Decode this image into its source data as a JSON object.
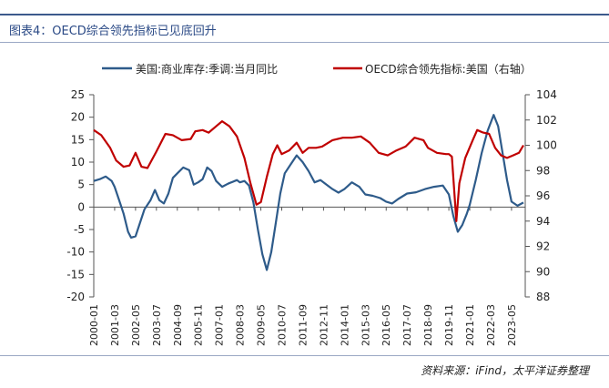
{
  "header": {
    "title": "图表4：OECD综合领先指标已见底回升"
  },
  "footer": {
    "source": "资料来源：iFind，太平洋证券整理"
  },
  "chart_data": {
    "type": "line",
    "title": "图表4：OECD综合领先指标已见底回升",
    "legend_position": "top",
    "x_categories": [
      "2000-01",
      "2001-03",
      "2002-05",
      "2003-07",
      "2004-09",
      "2005-11",
      "2007-01",
      "2008-03",
      "2009-05",
      "2010-07",
      "2011-09",
      "2012-11",
      "2014-01",
      "2015-03",
      "2016-05",
      "2017-07",
      "2018-09",
      "2019-11",
      "2021-01",
      "2022-03",
      "2023-05"
    ],
    "y_left": {
      "ticks": [
        25,
        20,
        15,
        10,
        5,
        0,
        -5,
        -10,
        -15,
        -20
      ],
      "range": [
        -20,
        25
      ]
    },
    "y_right": {
      "ticks": [
        104,
        102,
        100,
        98,
        96,
        94,
        92,
        90,
        88
      ],
      "range": [
        88,
        104
      ]
    },
    "series": [
      {
        "name": "美国:商业库存:季调:当月同比",
        "axis": "left",
        "color": "#2e5b8a",
        "points": [
          [
            "2000-01",
            5.8
          ],
          [
            "2000-05",
            6.2
          ],
          [
            "2000-09",
            6.8
          ],
          [
            "2001-01",
            5.8
          ],
          [
            "2001-03",
            4.5
          ],
          [
            "2001-06",
            1.5
          ],
          [
            "2001-09",
            -1.5
          ],
          [
            "2001-12",
            -5.5
          ],
          [
            "2002-02",
            -6.8
          ],
          [
            "2002-05",
            -6.5
          ],
          [
            "2002-08",
            -3.5
          ],
          [
            "2002-11",
            -0.5
          ],
          [
            "2003-03",
            1.5
          ],
          [
            "2003-06",
            3.8
          ],
          [
            "2003-09",
            1.5
          ],
          [
            "2003-12",
            0.8
          ],
          [
            "2004-03",
            3
          ],
          [
            "2004-06",
            6.5
          ],
          [
            "2004-09",
            7.5
          ],
          [
            "2005-01",
            8.8
          ],
          [
            "2005-05",
            8.2
          ],
          [
            "2005-08",
            5
          ],
          [
            "2005-11",
            5.5
          ],
          [
            "2006-02",
            6.2
          ],
          [
            "2006-05",
            8.8
          ],
          [
            "2006-08",
            8
          ],
          [
            "2006-11",
            5.8
          ],
          [
            "2007-03",
            4.5
          ],
          [
            "2007-07",
            5.2
          ],
          [
            "2008-01",
            6
          ],
          [
            "2008-03",
            5.5
          ],
          [
            "2008-06",
            5.8
          ],
          [
            "2008-09",
            4.8
          ],
          [
            "2008-12",
            1
          ],
          [
            "2009-03",
            -5
          ],
          [
            "2009-06",
            -10.5
          ],
          [
            "2009-09",
            -14
          ],
          [
            "2009-12",
            -10
          ],
          [
            "2010-03",
            -3.5
          ],
          [
            "2010-06",
            3
          ],
          [
            "2010-09",
            7.5
          ],
          [
            "2011-01",
            9.5
          ],
          [
            "2011-05",
            11.5
          ],
          [
            "2011-09",
            10
          ],
          [
            "2012-01",
            8
          ],
          [
            "2012-05",
            5.5
          ],
          [
            "2012-09",
            6
          ],
          [
            "2013-01",
            5
          ],
          [
            "2013-05",
            4
          ],
          [
            "2013-09",
            3.2
          ],
          [
            "2014-01",
            4
          ],
          [
            "2014-06",
            5.5
          ],
          [
            "2014-11",
            4.5
          ],
          [
            "2015-03",
            2.8
          ],
          [
            "2015-08",
            2.5
          ],
          [
            "2016-01",
            2
          ],
          [
            "2016-05",
            1.2
          ],
          [
            "2016-09",
            0.8
          ],
          [
            "2017-01",
            1.8
          ],
          [
            "2017-07",
            3
          ],
          [
            "2018-01",
            3.3
          ],
          [
            "2018-07",
            4
          ],
          [
            "2019-01",
            4.5
          ],
          [
            "2019-07",
            4.8
          ],
          [
            "2019-11",
            2.8
          ],
          [
            "2020-02",
            -2
          ],
          [
            "2020-05",
            -5.5
          ],
          [
            "2020-08",
            -4
          ],
          [
            "2020-11",
            -1.5
          ],
          [
            "2021-01",
            0.5
          ],
          [
            "2021-05",
            6
          ],
          [
            "2021-09",
            12
          ],
          [
            "2022-01",
            17
          ],
          [
            "2022-05",
            20.5
          ],
          [
            "2022-08",
            18
          ],
          [
            "2022-11",
            12
          ],
          [
            "2023-02",
            6
          ],
          [
            "2023-05",
            1.2
          ],
          [
            "2023-09",
            0.3
          ],
          [
            "2024-01",
            1
          ]
        ]
      },
      {
        "name": "OECD综合领先指标:美国（右轴）",
        "axis": "right",
        "color": "#c00000",
        "points": [
          [
            "2000-01",
            101.2
          ],
          [
            "2000-06",
            100.8
          ],
          [
            "2000-12",
            99.8
          ],
          [
            "2001-04",
            98.8
          ],
          [
            "2001-09",
            98.3
          ],
          [
            "2002-01",
            98.4
          ],
          [
            "2002-05",
            99.4
          ],
          [
            "2002-09",
            98.3
          ],
          [
            "2003-01",
            98.2
          ],
          [
            "2003-07",
            99.5
          ],
          [
            "2004-01",
            100.9
          ],
          [
            "2004-06",
            100.8
          ],
          [
            "2004-12",
            100.4
          ],
          [
            "2005-06",
            100.5
          ],
          [
            "2005-09",
            101.1
          ],
          [
            "2006-02",
            101.2
          ],
          [
            "2006-06",
            101.0
          ],
          [
            "2006-12",
            101.6
          ],
          [
            "2007-03",
            101.9
          ],
          [
            "2007-08",
            101.5
          ],
          [
            "2008-01",
            100.7
          ],
          [
            "2008-06",
            99.0
          ],
          [
            "2008-10",
            97.0
          ],
          [
            "2009-02",
            95.3
          ],
          [
            "2009-05",
            95.5
          ],
          [
            "2009-09",
            97.5
          ],
          [
            "2010-01",
            99.3
          ],
          [
            "2010-04",
            100.0
          ],
          [
            "2010-07",
            99.3
          ],
          [
            "2010-12",
            99.6
          ],
          [
            "2011-05",
            100.2
          ],
          [
            "2011-09",
            99.4
          ],
          [
            "2012-01",
            99.8
          ],
          [
            "2012-06",
            99.8
          ],
          [
            "2012-10",
            99.9
          ],
          [
            "2013-05",
            100.4
          ],
          [
            "2013-12",
            100.6
          ],
          [
            "2014-06",
            100.6
          ],
          [
            "2014-12",
            100.7
          ],
          [
            "2015-06",
            100.2
          ],
          [
            "2015-12",
            99.4
          ],
          [
            "2016-06",
            99.2
          ],
          [
            "2016-12",
            99.6
          ],
          [
            "2017-06",
            99.9
          ],
          [
            "2017-12",
            100.6
          ],
          [
            "2018-06",
            100.4
          ],
          [
            "2018-09",
            99.8
          ],
          [
            "2019-03",
            99.4
          ],
          [
            "2019-09",
            99.3
          ],
          [
            "2019-11",
            99.3
          ],
          [
            "2020-01",
            99.1
          ],
          [
            "2020-04",
            94.0
          ],
          [
            "2020-06",
            97.0
          ],
          [
            "2020-10",
            99.0
          ],
          [
            "2021-03",
            100.4
          ],
          [
            "2021-06",
            101.2
          ],
          [
            "2021-10",
            101.0
          ],
          [
            "2022-02",
            100.9
          ],
          [
            "2022-06",
            99.8
          ],
          [
            "2022-10",
            99.2
          ],
          [
            "2023-02",
            99.0
          ],
          [
            "2023-06",
            99.2
          ],
          [
            "2023-10",
            99.4
          ],
          [
            "2024-01",
            100.0
          ]
        ]
      }
    ]
  }
}
